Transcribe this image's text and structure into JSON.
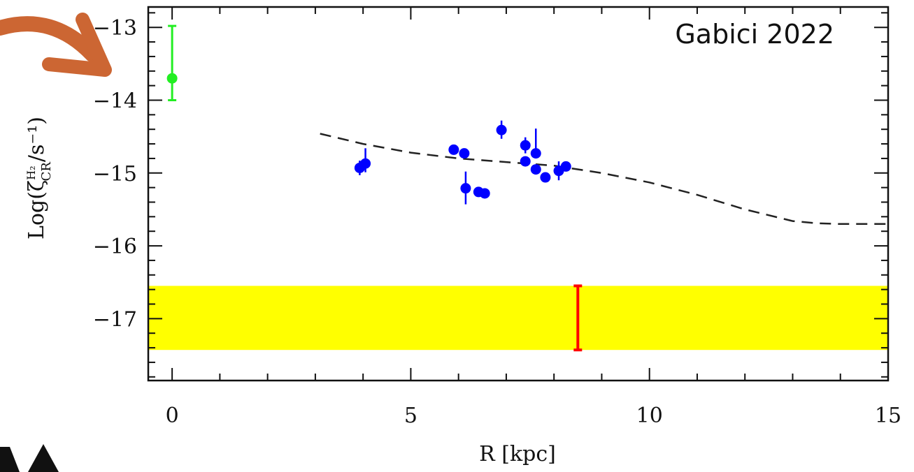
{
  "chart_data": {
    "type": "scatter",
    "title": "",
    "annotation": "Gabici 2022",
    "xlabel": "R [kpc]",
    "ylabel": "Log(ζ",
    "ylabel_sup": "H₂",
    "ylabel_sub": "CR",
    "ylabel_tail": "/s⁻¹)",
    "xlim": [
      -0.5,
      15
    ],
    "ylim": [
      -17.85,
      -12.72
    ],
    "x_ticks": [
      0,
      5,
      10,
      15
    ],
    "y_ticks": [
      -13,
      -14,
      -15,
      -16,
      -17
    ],
    "x_tick_labels": [
      "0",
      "5",
      "10",
      "15"
    ],
    "y_tick_labels": [
      "−13",
      "−14",
      "−15",
      "−16",
      "−17"
    ],
    "grid": false,
    "colors": {
      "points": "#0000ff",
      "center_point": "#22ee22",
      "band": "#ffff00",
      "band_error": "#ff0000",
      "model_line": "#222222",
      "arrow": "#cc6633"
    },
    "center_point": {
      "x": 0,
      "y": -13.7,
      "y_low": -14.0,
      "y_high": -12.98
    },
    "points": [
      {
        "x": 3.93,
        "y": -14.93,
        "y_low": -15.03,
        "y_high": -14.83
      },
      {
        "x": 4.05,
        "y": -14.87,
        "y_low": -14.99,
        "y_high": -14.66
      },
      {
        "x": 5.9,
        "y": -14.68,
        "y_low": -14.72,
        "y_high": -14.64
      },
      {
        "x": 6.12,
        "y": -14.73,
        "y_low": -14.77,
        "y_high": -14.69
      },
      {
        "x": 6.15,
        "y": -15.21,
        "y_low": -15.43,
        "y_high": -14.98
      },
      {
        "x": 6.42,
        "y": -15.26,
        "y_low": -15.3,
        "y_high": -15.22
      },
      {
        "x": 6.55,
        "y": -15.28,
        "y_low": -15.32,
        "y_high": -15.24
      },
      {
        "x": 6.9,
        "y": -14.41,
        "y_low": -14.53,
        "y_high": -14.28
      },
      {
        "x": 7.4,
        "y": -14.62,
        "y_low": -14.73,
        "y_high": -14.51
      },
      {
        "x": 7.4,
        "y": -14.84,
        "y_low": -14.88,
        "y_high": -14.8
      },
      {
        "x": 7.62,
        "y": -14.73,
        "y_low": -14.8,
        "y_high": -14.39
      },
      {
        "x": 7.62,
        "y": -14.95,
        "y_low": -14.99,
        "y_high": -14.91
      },
      {
        "x": 7.82,
        "y": -15.06,
        "y_low": -15.1,
        "y_high": -15.02
      },
      {
        "x": 8.1,
        "y": -14.97,
        "y_low": -15.1,
        "y_high": -14.84
      },
      {
        "x": 8.25,
        "y": -14.91,
        "y_low": -14.97,
        "y_high": -14.86
      }
    ],
    "band": {
      "y_low": -17.43,
      "y_high": -16.55
    },
    "band_error": {
      "x": 8.5,
      "y_low": -17.43,
      "y_high": -16.55
    },
    "model_line": {
      "x": [
        3.1,
        4.0,
        5.0,
        6.0,
        7.0,
        8.0,
        9.0,
        10.0,
        11.0,
        12.0,
        13.0,
        13.5,
        14.0,
        15.0
      ],
      "y": [
        -14.46,
        -14.6,
        -14.72,
        -14.8,
        -14.85,
        -14.9,
        -15.0,
        -15.13,
        -15.3,
        -15.5,
        -15.66,
        -15.69,
        -15.7,
        -15.7
      ]
    }
  }
}
